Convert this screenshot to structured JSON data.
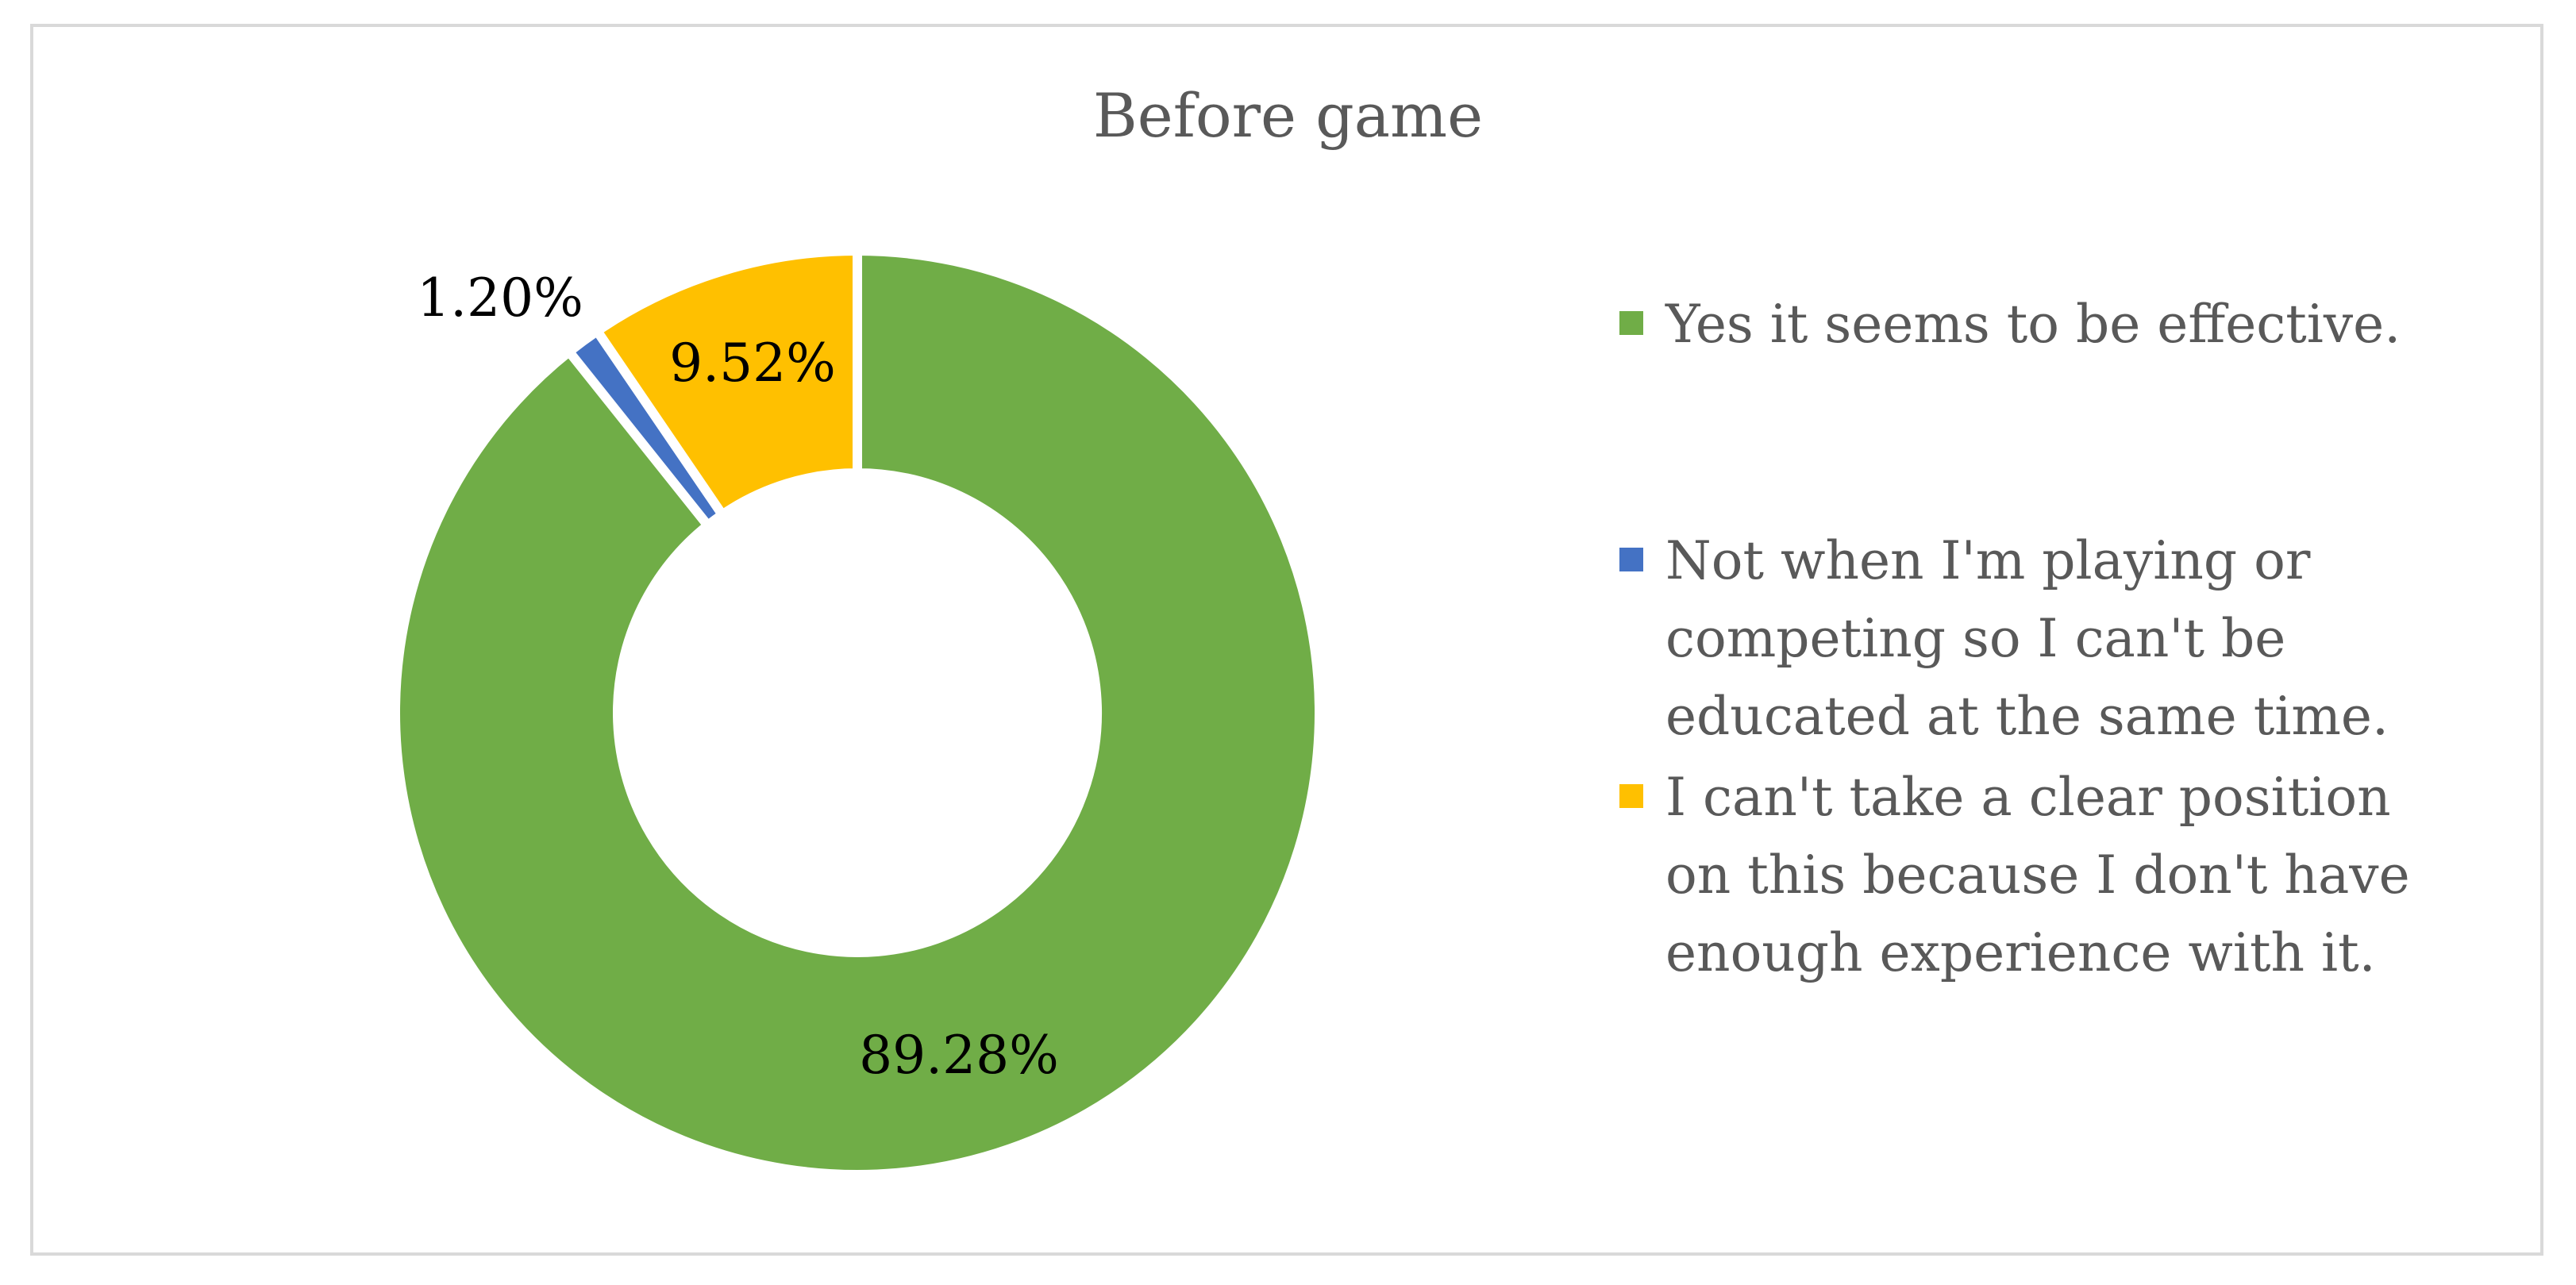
{
  "chart_data": {
    "type": "pie",
    "variant": "donut",
    "title": "Before game",
    "categories": [
      "Yes it seems to be effective.",
      "Not when I'm playing or\ncompeting so I can't be\neducated at the same time.",
      "I can't take a clear position\non this because I don't have\nenough experience with it."
    ],
    "values": [
      89.28,
      1.2,
      9.52
    ],
    "data_labels": [
      "89.28%",
      "1.20%",
      "9.52%"
    ],
    "colors": [
      "#70ad47",
      "#4472c4",
      "#ffc000"
    ],
    "legend_placement": "right",
    "start_angle": "12 o'clock",
    "direction": "clockwise"
  }
}
